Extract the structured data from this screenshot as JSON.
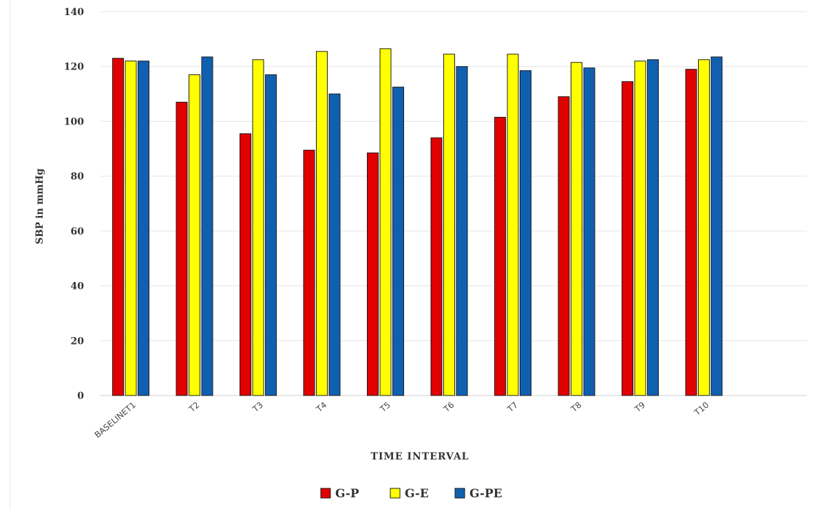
{
  "chart_data": {
    "type": "bar",
    "title": "",
    "xlabel": "TIME INTERVAL",
    "ylabel": "SBP in mmHg",
    "ylim": [
      0,
      140
    ],
    "yticks": [
      0,
      20,
      40,
      60,
      80,
      100,
      120,
      140
    ],
    "grid": true,
    "legend_position": "bottom",
    "categories": [
      "BASELINET1",
      "T2",
      "T3",
      "T4",
      "T5",
      "T6",
      "T7",
      "T8",
      "T9",
      "T10"
    ],
    "series": [
      {
        "name": "G-P",
        "color": "#e00000",
        "values": [
          123,
          107,
          95.5,
          89.5,
          88.5,
          94,
          101.5,
          109,
          114.5,
          119
        ]
      },
      {
        "name": "G-E",
        "color": "#ffff00",
        "values": [
          122,
          117,
          122.5,
          125.5,
          126.5,
          124.5,
          124.5,
          121.5,
          122,
          122.5
        ]
      },
      {
        "name": "G-PE",
        "color": "#1060b0",
        "values": [
          122,
          123.5,
          117,
          110,
          112.5,
          120,
          118.5,
          119.5,
          122.5,
          123.5
        ]
      }
    ]
  }
}
